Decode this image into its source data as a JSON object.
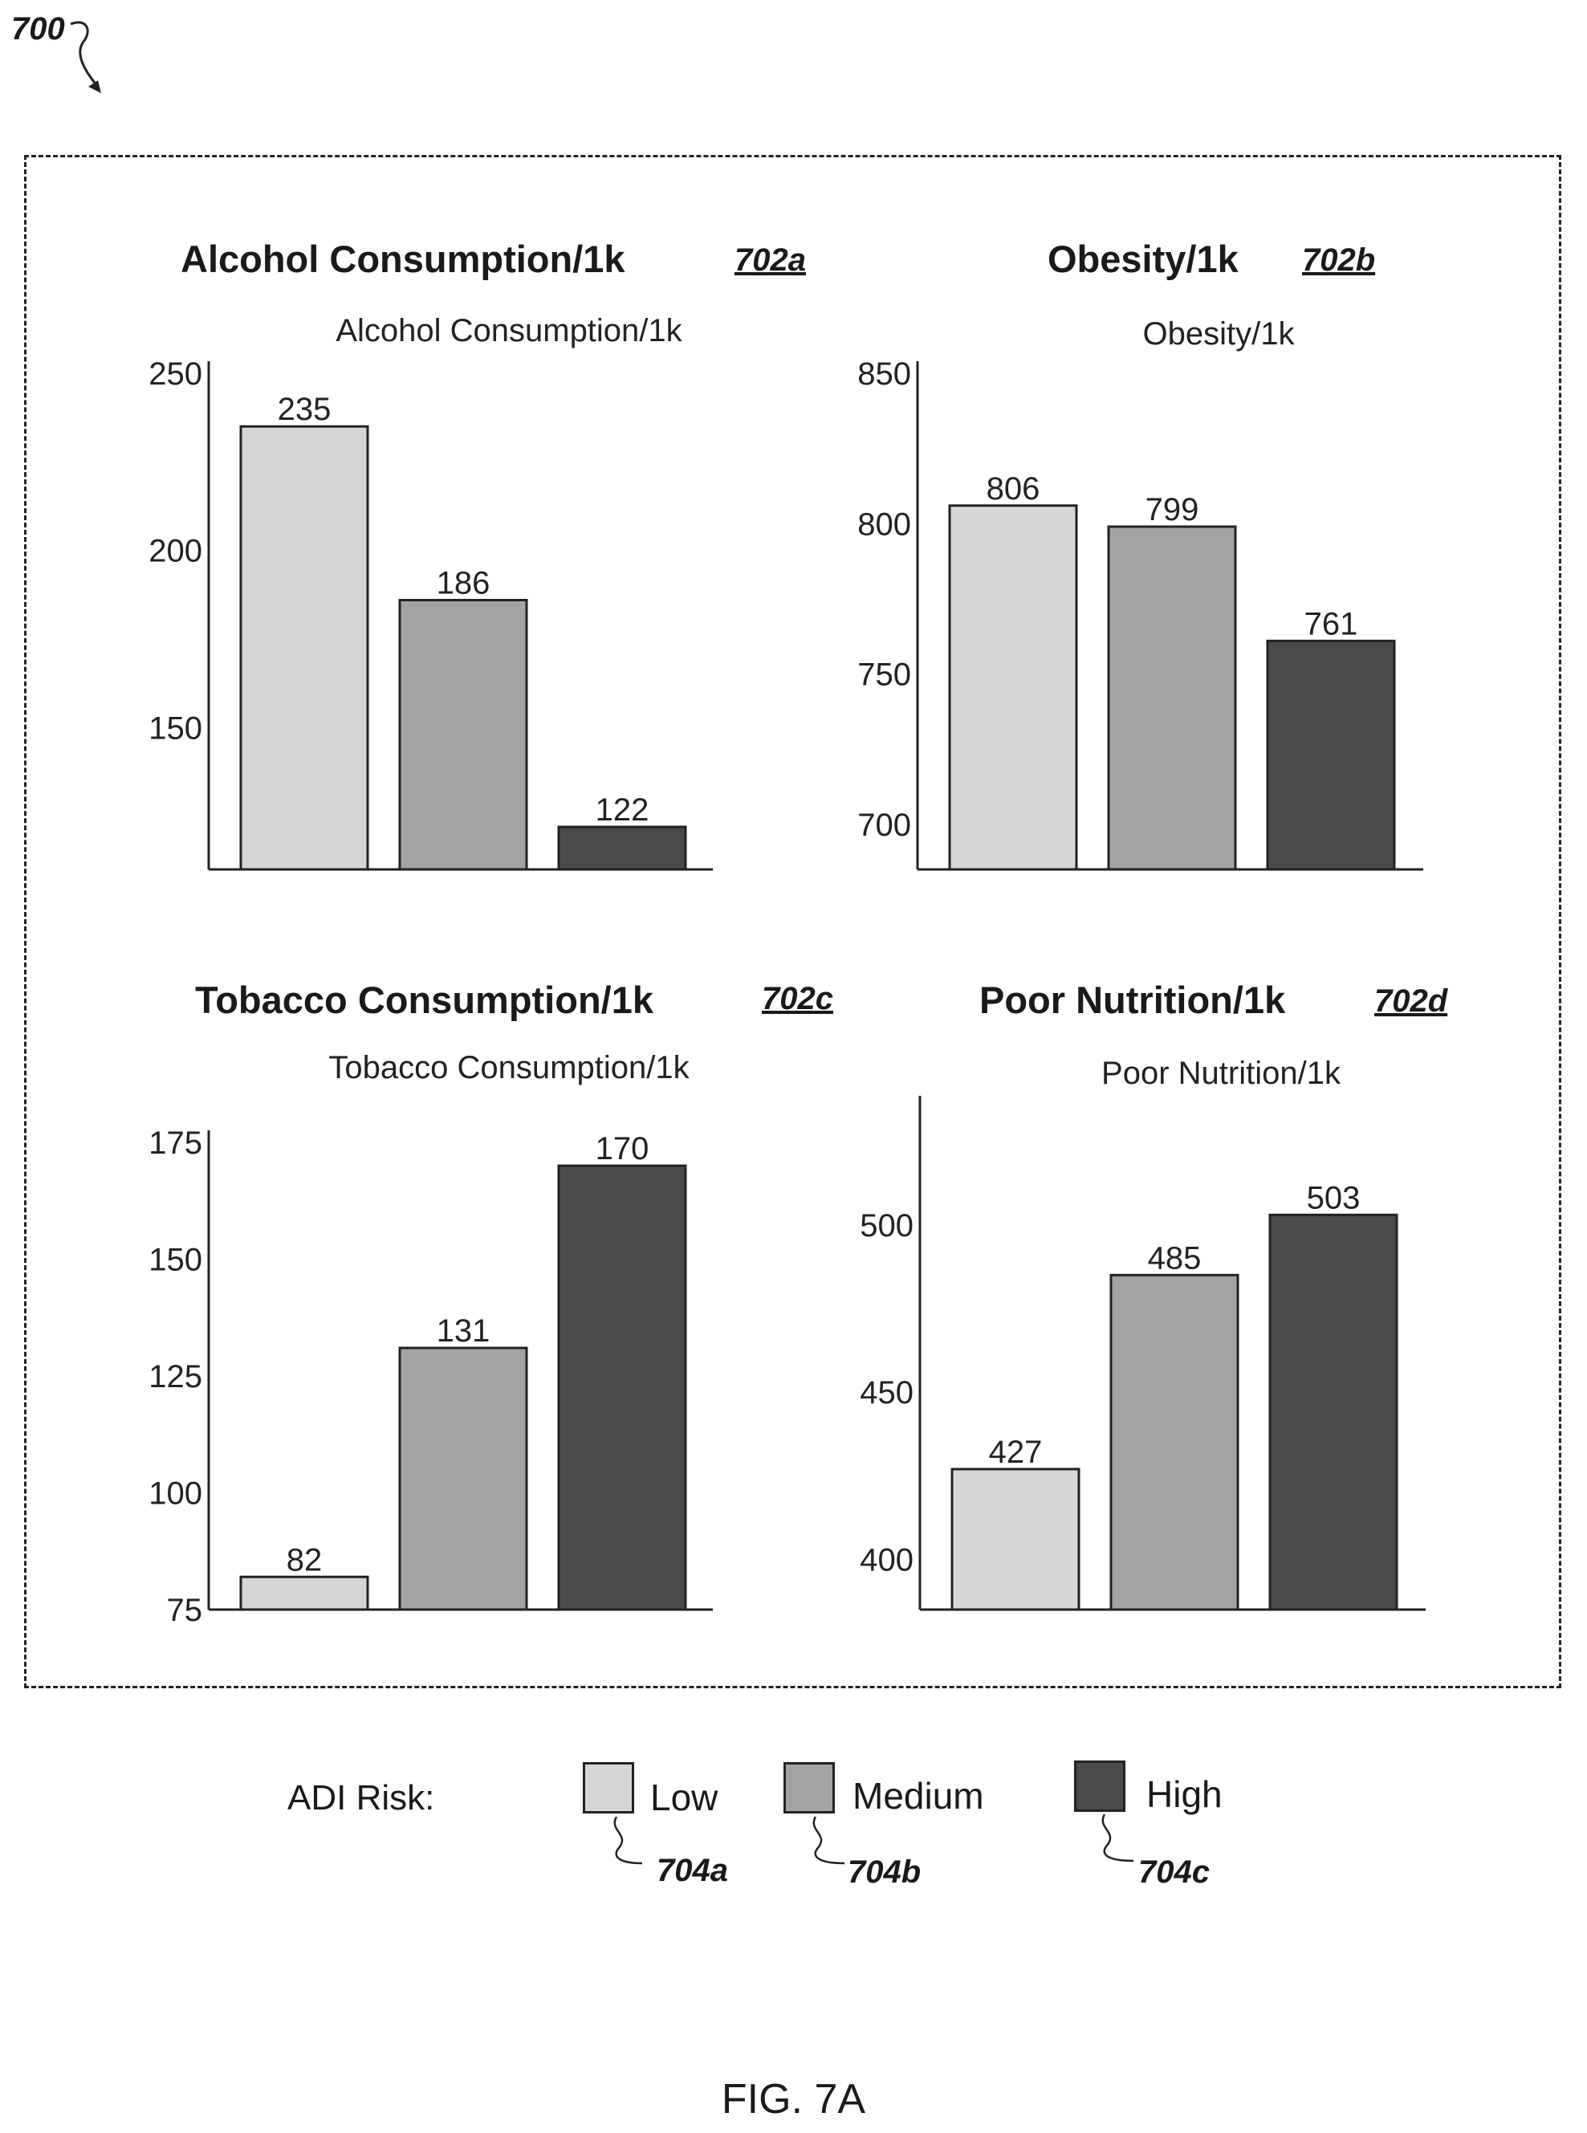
{
  "figure": {
    "ref": "700",
    "caption": "FIG. 7A"
  },
  "panels": [
    {
      "title": "Alcohol Consumption/1k",
      "ref": "702a"
    },
    {
      "title": "Obesity/1k",
      "ref": "702b"
    },
    {
      "title": "Tobacco Consumption/1k",
      "ref": "702c"
    },
    {
      "title": "Poor Nutrition/1k",
      "ref": "702d"
    }
  ],
  "legend": {
    "label": "ADI Risk:",
    "items": [
      {
        "name": "Low",
        "ref": "704a",
        "color": "#d6d6d6"
      },
      {
        "name": "Medium",
        "ref": "704b",
        "color": "#a3a3a3"
      },
      {
        "name": "High",
        "ref": "704c",
        "color": "#4a4a4a"
      }
    ]
  },
  "chart_data": [
    {
      "type": "bar",
      "title": "Alcohol Consumption/1k",
      "categories": [
        "Low",
        "Medium",
        "High"
      ],
      "values": [
        235,
        186,
        122
      ],
      "yticks": [
        150,
        200,
        250
      ],
      "ylim": [
        110,
        250
      ],
      "colors": [
        "#d6d6d6",
        "#a3a3a3",
        "#4a4a4a"
      ]
    },
    {
      "type": "bar",
      "title": "Obesity/1k",
      "categories": [
        "Low",
        "Medium",
        "High"
      ],
      "values": [
        806,
        799,
        761
      ],
      "yticks": [
        700,
        750,
        800,
        850
      ],
      "ylim": [
        685,
        850
      ],
      "colors": [
        "#d6d6d6",
        "#a3a3a3",
        "#4a4a4a"
      ]
    },
    {
      "type": "bar",
      "title": "Tobacco Consumption/1k",
      "categories": [
        "Low",
        "Medium",
        "High"
      ],
      "values": [
        82,
        131,
        170
      ],
      "yticks": [
        75,
        100,
        125,
        150,
        175
      ],
      "ylim": [
        75,
        175
      ],
      "colors": [
        "#d6d6d6",
        "#a3a3a3",
        "#4a4a4a"
      ]
    },
    {
      "type": "bar",
      "title": "Poor Nutrition/1k",
      "categories": [
        "Low",
        "Medium",
        "High"
      ],
      "values": [
        427,
        485,
        503
      ],
      "yticks": [
        400,
        450,
        500
      ],
      "ylim": [
        385,
        535
      ],
      "colors": [
        "#d6d6d6",
        "#a3a3a3",
        "#4a4a4a"
      ]
    }
  ]
}
